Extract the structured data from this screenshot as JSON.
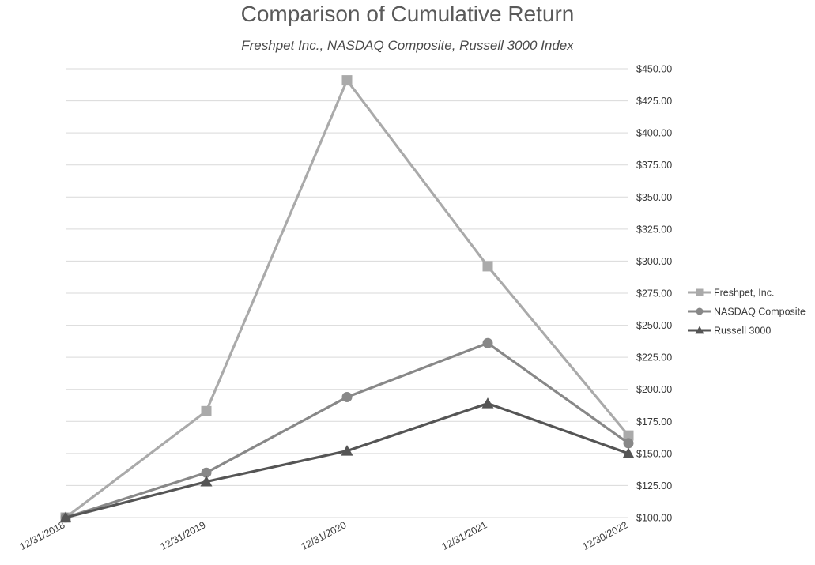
{
  "chart_data": {
    "type": "line",
    "title": "Comparison of Cumulative Return",
    "subtitle": "Freshpet Inc., NASDAQ Composite, Russell 3000 Index",
    "xlabel": "",
    "ylabel": "",
    "categories": [
      "12/31/2018",
      "12/31/2019",
      "12/31/2020",
      "12/31/2021",
      "12/30/2022"
    ],
    "ylim": [
      100,
      450
    ],
    "yticks": [
      "$100.00",
      "$125.00",
      "$150.00",
      "$175.00",
      "$200.00",
      "$225.00",
      "$250.00",
      "$275.00",
      "$300.00",
      "$325.00",
      "$350.00",
      "$375.00",
      "$400.00",
      "$425.00",
      "$450.00"
    ],
    "y_axis_side": "right",
    "grid": true,
    "legend_position": "right",
    "series": [
      {
        "name": "Freshpet, Inc.",
        "values": [
          100,
          183,
          441,
          296,
          164
        ],
        "color": "#aaaaaa",
        "marker": "square"
      },
      {
        "name": "NASDAQ Composite",
        "values": [
          100,
          135,
          194,
          236,
          158
        ],
        "color": "#888888",
        "marker": "circle"
      },
      {
        "name": "Russell 3000",
        "values": [
          100,
          128,
          152,
          189,
          150
        ],
        "color": "#555555",
        "marker": "triangle"
      }
    ]
  }
}
